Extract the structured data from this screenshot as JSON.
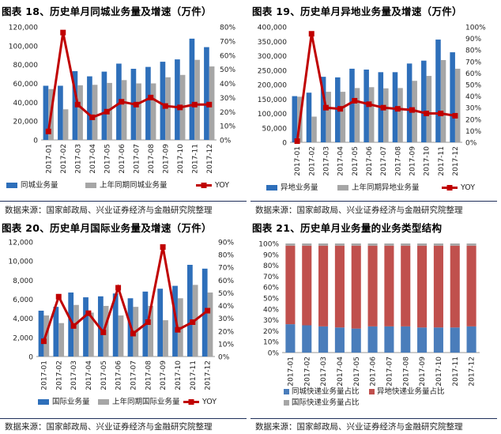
{
  "colors": {
    "primary": "#2e6fba",
    "secondary": "#a6a6a6",
    "yoy": "#c00000",
    "intra_share": "#4a7dbb",
    "inter_share": "#c0504d",
    "intl_share": "#a6a6a6"
  },
  "months": [
    "2017-01",
    "2017-02",
    "2017-03",
    "2017-04",
    "2017-05",
    "2017-06",
    "2017-07",
    "2017-08",
    "2017-09",
    "2017-10",
    "2017-11",
    "2017-12"
  ],
  "panels": [
    {
      "title": "图表 18、历史单月同城业务量及增速（万件）",
      "source": "数据来源：国家邮政局、兴业证券经济与金融研究院整理",
      "chart_data": {
        "type": "bar",
        "categories": [
          "2017-01",
          "2017-02",
          "2017-03",
          "2017-04",
          "2017-05",
          "2017-06",
          "2017-07",
          "2017-08",
          "2017-09",
          "2017-10",
          "2017-11",
          "2017-12"
        ],
        "series": [
          {
            "name": "同城业务量",
            "kind": "bar",
            "axis": "left",
            "values": [
              57500,
              57500,
              73000,
              67500,
              72500,
              81000,
              75500,
              77500,
              83000,
              85500,
              107500,
              98500
            ]
          },
          {
            "name": "上年同期同城业务量",
            "kind": "bar",
            "axis": "left",
            "values": [
              54000,
              32500,
              58000,
              58500,
              60500,
              63500,
              60000,
              60000,
              66500,
              69000,
              85000,
              78000
            ]
          },
          {
            "name": "YOY",
            "kind": "line",
            "axis": "right",
            "values": [
              6,
              76,
              25,
              16,
              20,
              27,
              25,
              30,
              24,
              23,
              25,
              25
            ]
          }
        ],
        "y_left": {
          "min": 0,
          "max": 120000,
          "step": 20000,
          "ticks": [
            "0",
            "20,000",
            "40,000",
            "60,000",
            "80,000",
            "100,000",
            "120,000"
          ]
        },
        "y_right": {
          "min": 0,
          "max": 80,
          "step": 10,
          "ticks": [
            "0%",
            "10%",
            "20%",
            "30%",
            "40%",
            "50%",
            "60%",
            "70%",
            "80%"
          ]
        },
        "legend_position": "bottom"
      }
    },
    {
      "title": "图表 19、历史单月异地业务量及增速（万件）",
      "source": "数据来源：国家邮政局、兴业证券经济与金融研究院整理",
      "chart_data": {
        "type": "bar",
        "categories": [
          "2017-01",
          "2017-02",
          "2017-03",
          "2017-04",
          "2017-05",
          "2017-06",
          "2017-07",
          "2017-08",
          "2017-09",
          "2017-10",
          "2017-11",
          "2017-12"
        ],
        "series": [
          {
            "name": "异地业务量",
            "kind": "bar",
            "axis": "left",
            "values": [
              160000,
              172000,
              227000,
              225000,
              255000,
              252000,
              243000,
              243000,
              273000,
              283000,
              356000,
              312000
            ]
          },
          {
            "name": "上年同期异地业务量",
            "kind": "bar",
            "axis": "left",
            "values": [
              158000,
              89000,
              175000,
              175000,
              188000,
              191000,
              187000,
              188000,
              213000,
              230000,
              285000,
              255000
            ]
          },
          {
            "name": "YOY",
            "kind": "line",
            "axis": "right",
            "values": [
              1,
              94,
              30,
              29,
              36,
              33,
              30,
              29,
              28,
              25,
              25,
              23
            ]
          }
        ],
        "y_left": {
          "min": 0,
          "max": 400000,
          "step": 50000,
          "ticks": [
            "0",
            "50,000",
            "100,000",
            "150,000",
            "200,000",
            "250,000",
            "300,000",
            "350,000",
            "400,000"
          ]
        },
        "y_right": {
          "min": 0,
          "max": 100,
          "step": 10,
          "ticks": [
            "0%",
            "10%",
            "20%",
            "30%",
            "40%",
            "50%",
            "60%",
            "70%",
            "80%",
            "90%",
            "100%"
          ]
        },
        "legend_position": "bottom"
      }
    },
    {
      "title": "图表 20、历史单月国际业务量及增速（万件）",
      "source": "数据来源：国家邮政局、兴业证券经济与金融研究院整理",
      "chart_data": {
        "type": "bar",
        "categories": [
          "2017-01",
          "2017-02",
          "2017-03",
          "2017-04",
          "2017-05",
          "2017-06",
          "2017-07",
          "2017-08",
          "2017-09",
          "2017-10",
          "2017-11",
          "2017-12"
        ],
        "series": [
          {
            "name": "国际业务量",
            "kind": "bar",
            "axis": "left",
            "values": [
              4800,
              5200,
              6700,
              6200,
              6300,
              6600,
              6100,
              6800,
              7100,
              7400,
              9600,
              9200
            ]
          },
          {
            "name": "上年同期国际业务量",
            "kind": "bar",
            "axis": "left",
            "values": [
              4300,
              3500,
              5400,
              4600,
              5300,
              4300,
              5200,
              5300,
              3800,
              6100,
              7500,
              6700
            ]
          },
          {
            "name": "YOY",
            "kind": "line",
            "axis": "right",
            "values": [
              12,
              47,
              24,
              34,
              19,
              54,
              18,
              27,
              86,
              21,
              27,
              36
            ]
          }
        ],
        "y_left": {
          "min": 0,
          "max": 12000,
          "step": 2000,
          "ticks": [
            "0",
            "2,000",
            "4,000",
            "6,000",
            "8,000",
            "10,000",
            "12,000"
          ]
        },
        "y_right": {
          "min": 0,
          "max": 90,
          "step": 10,
          "ticks": [
            "0%",
            "10%",
            "20%",
            "30%",
            "40%",
            "50%",
            "60%",
            "70%",
            "80%",
            "90%"
          ]
        },
        "legend_position": "bottom"
      }
    },
    {
      "title": "图表 21、历史单月业务量的业务类型结构",
      "source": "数据来源：国家邮政局、兴业证券经济与金融研究院整理",
      "chart_data": {
        "type": "bar",
        "stacked": true,
        "categories": [
          "2017-01",
          "2017-02",
          "2017-03",
          "2017-04",
          "2017-05",
          "2017-06",
          "2017-07",
          "2017-08",
          "2017-09",
          "2017-10",
          "2017-11",
          "2017-12"
        ],
        "series": [
          {
            "name": "同城快递业务量占比",
            "kind": "stack",
            "values": [
              26,
              25,
              24,
              23,
              22,
              24,
              24,
              24,
              23,
              23,
              23,
              24
            ]
          },
          {
            "name": "异地快递业务量占比",
            "kind": "stack",
            "values": [
              72,
              73,
              74,
              75,
              76,
              74,
              74,
              74,
              75,
              75,
              75,
              74
            ]
          },
          {
            "name": "国际快递业务量占比",
            "kind": "stack",
            "values": [
              2,
              2,
              2,
              2,
              2,
              2,
              2,
              2,
              2,
              2,
              2,
              2
            ]
          }
        ],
        "y_left": {
          "min": 0,
          "max": 100,
          "step": 10,
          "ticks": [
            "0%",
            "10%",
            "20%",
            "30%",
            "40%",
            "50%",
            "60%",
            "70%",
            "80%",
            "90%",
            "100%"
          ]
        },
        "legend_position": "bottom"
      }
    }
  ]
}
